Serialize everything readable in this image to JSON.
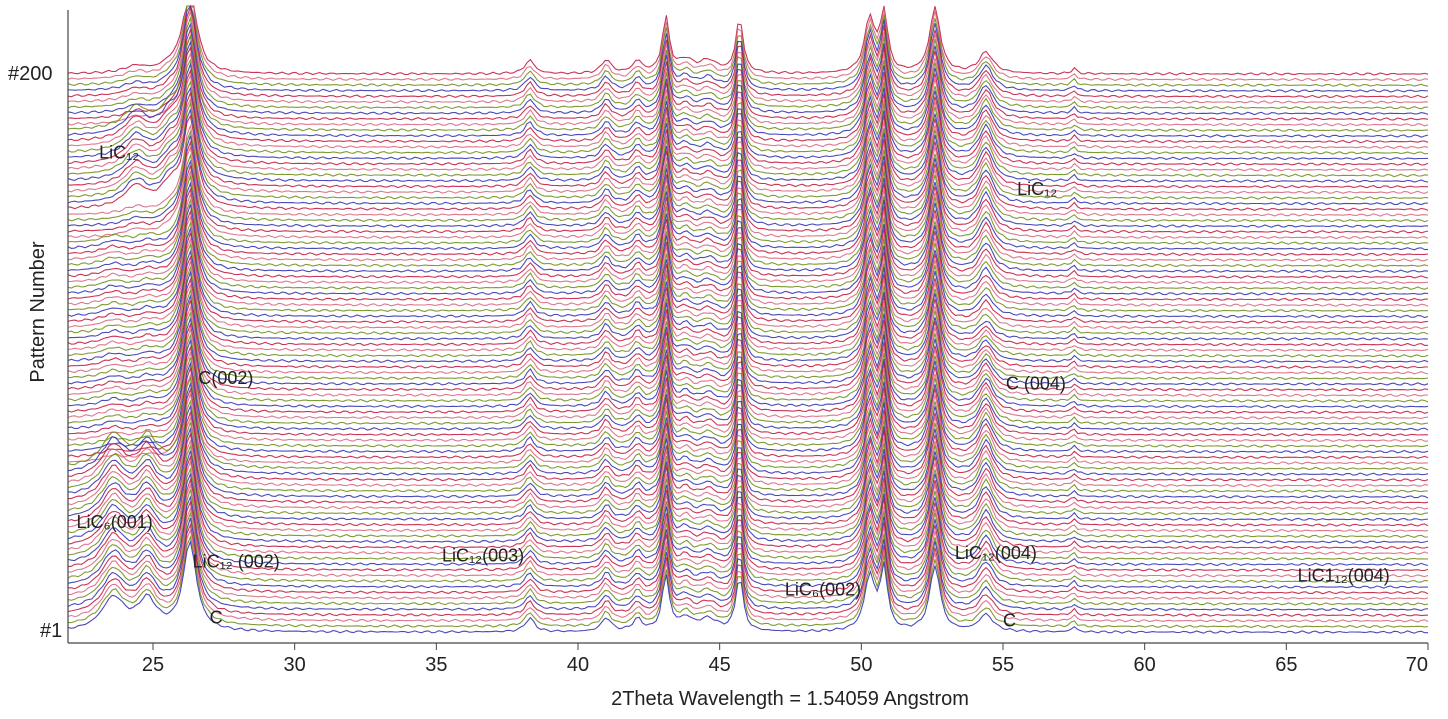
{
  "chart_data": {
    "type": "line",
    "title": "",
    "xlabel": "2Theta Wavelength = 1.54059 Angstrom",
    "ylabel": "Pattern Number",
    "xlim": [
      22,
      70
    ],
    "x_ticks": [
      25,
      30,
      35,
      40,
      45,
      50,
      55,
      60,
      65,
      70
    ],
    "y_end_labels": [
      "#200",
      "#1"
    ],
    "pattern_count": 200,
    "series_colors": [
      "#c0103a",
      "#2a2ab0",
      "#6a8a10",
      "#d8607a"
    ],
    "peaks": [
      {
        "x": 23.6,
        "h": 0.5,
        "w": 0.5
      },
      {
        "x": 24.8,
        "h": 0.45,
        "w": 0.4
      },
      {
        "x": 26.3,
        "h": 1.6,
        "w": 0.28
      },
      {
        "x": 38.3,
        "h": 0.25,
        "w": 0.2
      },
      {
        "x": 41.0,
        "h": 0.25,
        "w": 0.2
      },
      {
        "x": 42.1,
        "h": 0.22,
        "w": 0.2
      },
      {
        "x": 43.1,
        "h": 1.0,
        "w": 0.15
      },
      {
        "x": 43.8,
        "h": 0.22,
        "w": 0.3
      },
      {
        "x": 44.6,
        "h": 0.22,
        "w": 0.4
      },
      {
        "x": 45.7,
        "h": 1.0,
        "w": 0.15
      },
      {
        "x": 50.3,
        "h": 1.0,
        "w": 0.22
      },
      {
        "x": 50.8,
        "h": 1.1,
        "w": 0.15
      },
      {
        "x": 52.6,
        "h": 1.2,
        "w": 0.22
      },
      {
        "x": 54.4,
        "h": 0.5,
        "w": 0.3
      },
      {
        "x": 57.5,
        "h": 0.1,
        "w": 0.1
      }
    ],
    "annotations": [
      {
        "text": "LiC₁₂",
        "x": 23.1,
        "pattern": 170
      },
      {
        "text": "LiC₁₂",
        "x": 55.5,
        "pattern": 157
      },
      {
        "text": "C(002)",
        "x": 26.6,
        "pattern": 90
      },
      {
        "text": "C (004)",
        "x": 55.1,
        "pattern": 88
      },
      {
        "text": "LiC₆(001)",
        "x": 22.3,
        "pattern": 39
      },
      {
        "text": "LiC₁₂ (002)",
        "x": 26.4,
        "pattern": 25
      },
      {
        "text": "LiC₁₂(003)",
        "x": 35.2,
        "pattern": 27
      },
      {
        "text": "LiC₁₂(004)",
        "x": 53.3,
        "pattern": 28
      },
      {
        "text": "LiC₆(002)",
        "x": 47.3,
        "pattern": 15
      },
      {
        "text": "LiC1₁₂(004)",
        "x": 65.4,
        "pattern": 20
      },
      {
        "text": "C",
        "x": 27.0,
        "pattern": 5
      },
      {
        "text": "C",
        "x": 55.0,
        "pattern": 4
      }
    ]
  }
}
